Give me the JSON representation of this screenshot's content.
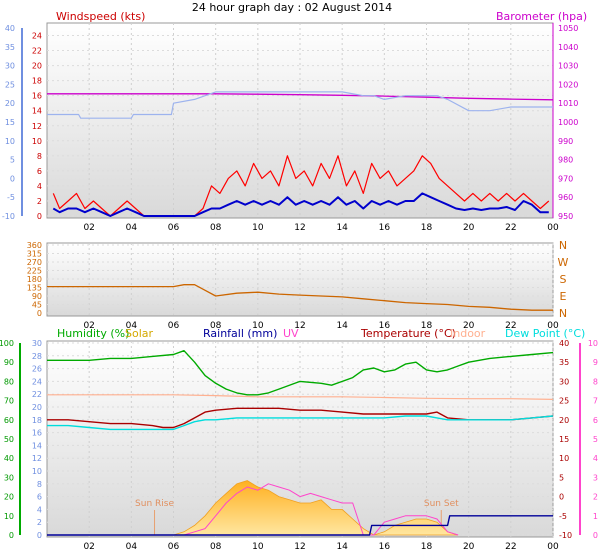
{
  "title": "24 hour graph day : 02 August 2014",
  "colors": {
    "wind": "#ff0000",
    "gust": "#0000cc",
    "pressure": "#cc00cc",
    "temp_outdoor_old": "#9db3ee",
    "direction": "#cc6600",
    "humidity": "#00aa00",
    "solar": "#ffc040",
    "rainfall": "#000099",
    "uv": "#ff44cc",
    "temperature": "#aa0000",
    "indoor": "#ffb090",
    "dewpoint": "#00dddd",
    "left_axis_blue": "#6f8fe0"
  },
  "chart_data": [
    {
      "type": "line",
      "panel": "wind-pressure",
      "title": "Windspeed (kts)",
      "right_title": "Barometer (hpa)",
      "x_ticks": [
        "02",
        "04",
        "06",
        "08",
        "10",
        "12",
        "14",
        "16",
        "18",
        "20",
        "22",
        "00"
      ],
      "xlim": [
        0,
        24
      ],
      "y_left": {
        "label": "Windspeed (kts)",
        "ticks": [
          0,
          2,
          4,
          6,
          8,
          10,
          12,
          14,
          16,
          18,
          20,
          22,
          24
        ],
        "ylim": [
          0,
          25
        ]
      },
      "y_left_outer": {
        "ticks": [
          -10,
          -5,
          0,
          5,
          10,
          15,
          20,
          25,
          30,
          35,
          40
        ],
        "ylim": [
          -10,
          40
        ]
      },
      "y_right": {
        "label": "Barometer (hpa)",
        "ticks": [
          950,
          960,
          970,
          980,
          990,
          1000,
          1010,
          1020,
          1030,
          1040,
          1050
        ],
        "ylim": [
          950,
          1050
        ]
      },
      "series": [
        {
          "name": "Windspeed",
          "axis": "left",
          "x": [
            0.3,
            0.6,
            1,
            1.4,
            1.8,
            2.2,
            2.6,
            3,
            3.4,
            3.8,
            4.2,
            4.6,
            5,
            5.4,
            5.8,
            6.2,
            6.6,
            7,
            7.4,
            7.8,
            8.2,
            8.6,
            9,
            9.4,
            9.8,
            10.2,
            10.6,
            11,
            11.4,
            11.8,
            12.2,
            12.6,
            13,
            13.4,
            13.8,
            14.2,
            14.6,
            15,
            15.4,
            15.8,
            16.2,
            16.6,
            17,
            17.4,
            17.8,
            18.2,
            18.6,
            19,
            19.4,
            19.8,
            20.2,
            20.6,
            21,
            21.4,
            21.8,
            22.2,
            22.6,
            23,
            23.4,
            23.8
          ],
          "y": [
            3,
            1,
            2,
            3,
            1,
            2,
            1,
            0,
            1,
            2,
            1,
            0,
            0,
            0,
            0,
            0,
            0,
            0,
            1,
            4,
            3,
            5,
            6,
            4,
            7,
            5,
            6,
            4,
            8,
            5,
            6,
            4,
            7,
            5,
            8,
            4,
            6,
            3,
            7,
            5,
            6,
            4,
            5,
            6,
            8,
            7,
            5,
            4,
            3,
            2,
            3,
            2,
            3,
            2,
            3,
            2,
            3,
            2,
            1,
            2
          ]
        },
        {
          "name": "Gust",
          "axis": "left",
          "x": [
            0.3,
            0.6,
            1,
            1.4,
            1.8,
            2.2,
            2.6,
            3,
            3.4,
            3.8,
            4.2,
            4.6,
            5,
            5.4,
            5.8,
            6.2,
            6.6,
            7,
            7.4,
            7.8,
            8.2,
            8.6,
            9,
            9.4,
            9.8,
            10.2,
            10.6,
            11,
            11.4,
            11.8,
            12.2,
            12.6,
            13,
            13.4,
            13.8,
            14.2,
            14.6,
            15,
            15.4,
            15.8,
            16.2,
            16.6,
            17,
            17.4,
            17.8,
            18.2,
            18.6,
            19,
            19.4,
            19.8,
            20.2,
            20.6,
            21,
            21.4,
            21.8,
            22.2,
            22.6,
            23,
            23.4,
            23.8
          ],
          "y": [
            1,
            0.5,
            1,
            1,
            0.5,
            1,
            0.5,
            0,
            0.5,
            1,
            0.5,
            0,
            0,
            0,
            0,
            0,
            0,
            0,
            0.5,
            1,
            1,
            1.5,
            2,
            1.5,
            2,
            1.5,
            2,
            1.5,
            2.5,
            1.5,
            2,
            1.5,
            2,
            1.5,
            2.5,
            1.5,
            2,
            1,
            2,
            1.5,
            2,
            1.5,
            2,
            2,
            3,
            2.5,
            2,
            1.5,
            1,
            0.8,
            1,
            0.8,
            1,
            1,
            1.2,
            0.8,
            2,
            1.5,
            0.5,
            0.5
          ]
        },
        {
          "name": "Barometer",
          "axis": "right",
          "x": [
            0,
            2,
            4,
            6,
            8,
            10,
            12,
            14,
            16,
            18,
            20,
            22,
            24
          ],
          "y": [
            1015,
            1015,
            1015,
            1015,
            1015,
            1014.8,
            1014.5,
            1014.2,
            1013.8,
            1013.2,
            1012.6,
            1012.2,
            1011.8
          ]
        },
        {
          "name": "Outer scale trace",
          "axis": "left_outer",
          "x": [
            0,
            1.5,
            1.6,
            4,
            4.1,
            5.9,
            6,
            7,
            7.5,
            8,
            9,
            10,
            11,
            12,
            13,
            14,
            15,
            15.5,
            16,
            17,
            18,
            18.5,
            19,
            20,
            21,
            22,
            23,
            24
          ],
          "y": [
            17,
            17,
            16,
            16,
            17,
            17,
            20,
            21,
            22,
            23,
            23,
            23,
            23,
            23,
            23,
            23,
            22,
            22,
            21,
            22,
            22,
            22,
            21,
            18,
            18,
            19,
            19,
            19
          ]
        }
      ]
    },
    {
      "type": "line",
      "panel": "wind-direction",
      "x_ticks": [
        "02",
        "04",
        "06",
        "08",
        "10",
        "12",
        "14",
        "16",
        "18",
        "20",
        "22",
        "00"
      ],
      "xlim": [
        0,
        24
      ],
      "y_left": {
        "ticks": [
          0,
          45,
          90,
          135,
          180,
          225,
          270,
          315,
          360
        ],
        "ylim": [
          0,
          360
        ]
      },
      "y_right": {
        "ticks": [
          "N",
          "E",
          "S",
          "W",
          "N"
        ]
      },
      "series": [
        {
          "name": "Wind direction",
          "x": [
            0,
            1,
            2,
            3,
            4,
            5,
            6,
            6.5,
            7,
            7.5,
            8,
            9,
            10,
            11,
            12,
            13,
            14,
            15,
            16,
            17,
            18,
            19,
            20,
            21,
            22,
            23,
            24
          ],
          "y": [
            140,
            140,
            140,
            140,
            140,
            140,
            140,
            150,
            150,
            120,
            90,
            105,
            110,
            100,
            95,
            90,
            85,
            75,
            65,
            55,
            50,
            45,
            35,
            30,
            20,
            15,
            15
          ]
        }
      ]
    },
    {
      "type": "area",
      "panel": "temperature-humidity-solar",
      "legend": [
        "Humidity (%)",
        "Solar",
        "Rainfall (mm)",
        "UV",
        "Temperature (°C)",
        "Indoor",
        "Dew Point (°C)"
      ],
      "annotations": [
        "Sun Rise",
        "Sun Set"
      ],
      "x_ticks": [
        "02",
        "04",
        "06",
        "08",
        "10",
        "12",
        "14",
        "16",
        "18",
        "20",
        "22",
        "00"
      ],
      "xlim": [
        0,
        24
      ],
      "y_left_outer": {
        "ticks": [
          0,
          10,
          20,
          30,
          40,
          50,
          60,
          70,
          80,
          90,
          100
        ],
        "ylim": [
          0,
          100
        ]
      },
      "y_left": {
        "ticks": [
          0,
          2,
          4,
          6,
          8,
          10,
          12,
          14,
          16,
          18,
          20,
          22,
          24,
          26,
          28,
          30
        ],
        "ylim": [
          0,
          30
        ]
      },
      "y_right": {
        "ticks": [
          -10,
          -5,
          0,
          5,
          10,
          15,
          20,
          25,
          30,
          35,
          40
        ],
        "ylim": [
          -10,
          40
        ]
      },
      "y_right_outer": {
        "ticks": [
          0,
          1,
          2,
          3,
          4,
          5,
          6,
          7,
          8,
          9,
          10
        ],
        "ylim": [
          0,
          10
        ]
      },
      "series": [
        {
          "name": "Humidity (%)",
          "axis": "left_outer",
          "x": [
            0,
            1,
            2,
            3,
            4,
            5,
            6,
            6.5,
            7,
            7.5,
            8,
            8.5,
            9,
            9.5,
            10,
            10.5,
            11,
            12,
            13,
            13.5,
            14,
            14.5,
            15,
            15.5,
            16,
            16.5,
            17,
            17.5,
            18,
            18.5,
            19,
            19.5,
            20,
            21,
            22,
            23,
            24
          ],
          "y": [
            91,
            91,
            91,
            92,
            92,
            93,
            94,
            96,
            90,
            83,
            79,
            76,
            74,
            73,
            73,
            74,
            76,
            80,
            79,
            78,
            80,
            82,
            86,
            87,
            85,
            86,
            89,
            90,
            86,
            85,
            86,
            88,
            90,
            92,
            93,
            94,
            95
          ]
        },
        {
          "name": "Temperature (°C)",
          "axis": "right",
          "x": [
            0,
            1,
            2,
            3,
            4,
            5,
            5.5,
            6,
            6.5,
            7,
            7.5,
            8,
            9,
            10,
            11,
            12,
            13,
            14,
            15,
            16,
            17,
            18,
            18.5,
            19,
            20,
            21,
            22,
            23,
            24
          ],
          "y": [
            20,
            20,
            19.5,
            19,
            19,
            18.5,
            18,
            18,
            19,
            20.5,
            22,
            22.5,
            23,
            23,
            23,
            22.5,
            22.5,
            22,
            21.5,
            21.5,
            21.5,
            21.5,
            22,
            20.5,
            20,
            20,
            20,
            20.5,
            21
          ]
        },
        {
          "name": "Dew Point (°C)",
          "axis": "right",
          "x": [
            0,
            1,
            2,
            3,
            4,
            5,
            5.5,
            6,
            6.5,
            7,
            7.5,
            8,
            9,
            10,
            11,
            12,
            13,
            14,
            15,
            16,
            17,
            18,
            18.5,
            19,
            20,
            21,
            22,
            23,
            24
          ],
          "y": [
            18.5,
            18.5,
            18,
            17.5,
            17.5,
            17.5,
            17.5,
            17.5,
            18.5,
            19.5,
            20,
            20,
            20.5,
            20.5,
            20.5,
            20.5,
            20.5,
            20.5,
            20.5,
            20.5,
            21,
            21,
            20.5,
            20,
            20,
            20,
            20,
            20.5,
            21
          ]
        },
        {
          "name": "Indoor",
          "axis": "right",
          "x": [
            0,
            2,
            4,
            6,
            8,
            10,
            12,
            14,
            16,
            18,
            20,
            22,
            24
          ],
          "y": [
            26.5,
            26.5,
            26.5,
            26.5,
            26.3,
            26,
            26,
            26,
            25.8,
            25.6,
            25.5,
            25.5,
            25.3
          ]
        },
        {
          "name": "Solar",
          "axis": "left",
          "fill": true,
          "x": [
            5,
            5.5,
            6,
            6.5,
            7,
            7.5,
            8,
            8.5,
            9,
            9.5,
            10,
            10.5,
            11,
            11.5,
            12,
            12.5,
            13,
            13.5,
            14,
            14.5,
            15,
            15.5,
            16,
            16.5,
            17,
            17.5,
            18,
            18.5,
            19,
            19.5
          ],
          "y": [
            0,
            0,
            0,
            0.5,
            1.5,
            3,
            5,
            6.5,
            8,
            8.5,
            7.5,
            7,
            6,
            5.5,
            5,
            5,
            5.5,
            4,
            4,
            2.5,
            1,
            0,
            0.5,
            1.5,
            2,
            2.5,
            2.5,
            2,
            0.5,
            0
          ]
        },
        {
          "name": "UV",
          "axis": "left",
          "x": [
            5,
            5.5,
            6,
            6.5,
            7,
            7.5,
            8,
            8.5,
            9,
            9.5,
            10,
            10.5,
            11,
            11.5,
            12,
            12.5,
            13,
            13.5,
            14,
            14.5,
            15,
            15.5,
            16,
            16.5,
            17,
            17.5,
            18,
            18.5,
            19,
            19.5
          ],
          "y": [
            0,
            0,
            0,
            0,
            0.5,
            1,
            3,
            5,
            6.5,
            7.5,
            7,
            8,
            7.5,
            7,
            6,
            6.5,
            6,
            5.5,
            5,
            5,
            0,
            0,
            2,
            2.5,
            3,
            3,
            3,
            2.5,
            0.5,
            0
          ]
        },
        {
          "name": "Rainfall (mm)",
          "axis": "left",
          "x": [
            0,
            15.3,
            15.4,
            18,
            18.5,
            19,
            19.1,
            24
          ],
          "y": [
            0,
            0,
            1.5,
            1.5,
            1.5,
            1.5,
            3,
            3
          ]
        }
      ]
    }
  ]
}
